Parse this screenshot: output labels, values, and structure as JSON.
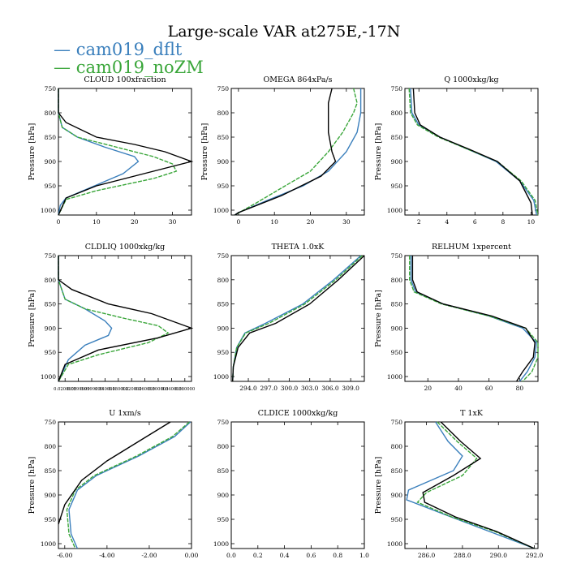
{
  "title": "Large-scale VAR at275E,-17N",
  "legend": [
    {
      "label": "cam019_dflt",
      "color": "#3a7fbc"
    },
    {
      "label": "cam019_noZM",
      "color": "#3aa63a"
    }
  ],
  "colors": {
    "dflt": "#3a7fbc",
    "noZM": "#3aa63a",
    "obs": "#000000"
  },
  "chart_data": [
    {
      "type": "line",
      "title": "CLOUD  100xfraction",
      "ylabel": "Pressure [hPa]",
      "ylim": [
        1010,
        750
      ],
      "xlim": [
        0,
        35
      ],
      "xticks": [
        0,
        10,
        20,
        30
      ],
      "xticklabels": [
        "0",
        "10",
        "20",
        "30"
      ],
      "yticks": [
        750,
        800,
        850,
        900,
        950,
        1000
      ],
      "yticklabels": [
        "750",
        "800",
        "850",
        "900",
        "950",
        "1000"
      ],
      "series": [
        {
          "name": "cam019_dflt",
          "style": "dflt",
          "x": [
            0,
            0,
            1,
            5,
            12,
            20,
            21,
            17,
            8,
            2,
            0.5,
            0
          ],
          "y": [
            750,
            800,
            830,
            850,
            870,
            890,
            900,
            925,
            955,
            975,
            990,
            1010
          ]
        },
        {
          "name": "cam019_noZM",
          "style": "noZM",
          "x": [
            0,
            0,
            1,
            5,
            15,
            25,
            30,
            31,
            25,
            10,
            2,
            0
          ],
          "y": [
            750,
            800,
            830,
            850,
            870,
            890,
            905,
            920,
            935,
            960,
            978,
            1010
          ]
        },
        {
          "name": "",
          "style": "obs",
          "x": [
            0,
            0,
            2,
            10,
            20,
            28,
            35,
            25,
            10,
            2,
            0
          ],
          "y": [
            750,
            800,
            820,
            850,
            865,
            880,
            900,
            920,
            950,
            975,
            1010
          ]
        }
      ]
    },
    {
      "type": "line",
      "title": "OMEGA  864xPa/s",
      "ylabel": "Pressure [hPa]",
      "ylim": [
        1010,
        750
      ],
      "xlim": [
        -2,
        35
      ],
      "xticks": [
        0,
        10,
        20,
        30
      ],
      "xticklabels": [
        "0",
        "10",
        "20",
        "30"
      ],
      "yticks": [
        750,
        800,
        850,
        900,
        950,
        1000
      ],
      "yticklabels": [
        "750",
        "800",
        "850",
        "900",
        "950",
        "1000"
      ],
      "series": [
        {
          "name": "cam019_dflt",
          "style": "dflt",
          "x": [
            34,
            34,
            34,
            33,
            30,
            25,
            18,
            8,
            0,
            -1
          ],
          "y": [
            750,
            780,
            800,
            840,
            880,
            920,
            950,
            980,
            1005,
            1010
          ]
        },
        {
          "name": "cam019_noZM",
          "style": "noZM",
          "x": [
            32,
            33,
            32,
            29,
            25,
            20,
            13,
            5,
            -1
          ],
          "y": [
            750,
            780,
            800,
            840,
            880,
            920,
            950,
            985,
            1010
          ]
        },
        {
          "name": "",
          "style": "obs",
          "x": [
            26,
            25,
            25,
            25,
            26,
            27,
            23,
            12,
            0,
            -1
          ],
          "y": [
            750,
            780,
            800,
            840,
            880,
            900,
            930,
            970,
            1005,
            1010
          ]
        }
      ]
    },
    {
      "type": "line",
      "title": "Q  1000xkg/kg",
      "ylabel": "Pressure [hPa]",
      "ylim": [
        1010,
        750
      ],
      "xlim": [
        1,
        10.5
      ],
      "xticks": [
        2,
        4,
        6,
        8,
        10
      ],
      "xticklabels": [
        "2",
        "4",
        "6",
        "8",
        "10"
      ],
      "yticks": [
        750,
        800,
        850,
        900,
        950,
        1000
      ],
      "yticklabels": [
        "750",
        "800",
        "850",
        "900",
        "950",
        "1000"
      ],
      "series": [
        {
          "name": "cam019_dflt",
          "style": "dflt",
          "x": [
            1.4,
            1.5,
            2.0,
            3.5,
            5.5,
            7.5,
            9.2,
            10.2,
            10.4
          ],
          "y": [
            750,
            800,
            825,
            850,
            875,
            900,
            940,
            980,
            1010
          ]
        },
        {
          "name": "cam019_noZM",
          "style": "noZM",
          "x": [
            1.3,
            1.4,
            1.9,
            3.4,
            5.5,
            7.6,
            9.3,
            10.3,
            10.5
          ],
          "y": [
            750,
            800,
            825,
            850,
            875,
            900,
            940,
            980,
            1010
          ]
        },
        {
          "name": "",
          "style": "obs",
          "x": [
            1.6,
            1.7,
            2.1,
            3.5,
            5.6,
            7.6,
            9.2,
            10.0,
            10.1
          ],
          "y": [
            750,
            800,
            825,
            850,
            875,
            900,
            940,
            985,
            1010
          ]
        }
      ]
    },
    {
      "type": "line",
      "title": "CLDLIQ  1000xkg/kg",
      "ylabel": "Pressure [hPa]",
      "ylim": [
        1010,
        750
      ],
      "xlim": [
        0,
        0.4
      ],
      "xticks": [
        0.02,
        0.06,
        0.1,
        0.14,
        0.18,
        0.22,
        0.26,
        0.3,
        0.34,
        0.38
      ],
      "xticklabels": [
        "0.0200000",
        "0.0599999",
        "0.0999999",
        "0.140000",
        "0.180000",
        "0.220000",
        "0.260000",
        "0.300000",
        "0.340000",
        "0.380000"
      ],
      "yticks": [
        750,
        800,
        850,
        900,
        950,
        1000
      ],
      "yticklabels": [
        "750",
        "800",
        "850",
        "900",
        "950",
        "1000"
      ],
      "series": [
        {
          "name": "cam019_dflt",
          "style": "dflt",
          "x": [
            0,
            0,
            0.02,
            0.08,
            0.14,
            0.16,
            0.15,
            0.08,
            0.03,
            0
          ],
          "y": [
            750,
            800,
            840,
            860,
            885,
            900,
            915,
            935,
            965,
            1010
          ]
        },
        {
          "name": "cam019_noZM",
          "style": "noZM",
          "x": [
            0,
            0,
            0.02,
            0.08,
            0.2,
            0.3,
            0.33,
            0.27,
            0.12,
            0.03,
            0
          ],
          "y": [
            750,
            800,
            840,
            860,
            880,
            895,
            910,
            930,
            955,
            975,
            1010
          ]
        },
        {
          "name": "",
          "style": "obs",
          "x": [
            0,
            0,
            0.04,
            0.15,
            0.28,
            0.4,
            0.3,
            0.12,
            0.02,
            0
          ],
          "y": [
            750,
            800,
            820,
            850,
            870,
            900,
            920,
            945,
            975,
            1010
          ]
        }
      ]
    },
    {
      "type": "line",
      "title": "THETA  1.0xK",
      "ylabel": "",
      "ylim": [
        1010,
        750
      ],
      "xlim": [
        291.5,
        311
      ],
      "xticks": [
        294,
        297,
        300,
        303,
        306,
        309
      ],
      "xticklabels": [
        "294.0",
        "297.0",
        "300.0",
        "303.0",
        "306.0",
        "309.0"
      ],
      "yticks": [
        750,
        800,
        850,
        900,
        950,
        1000
      ],
      "yticklabels": [
        "750",
        "800",
        "850",
        "900",
        "950",
        "1000"
      ],
      "series": [
        {
          "name": "cam019_dflt",
          "style": "dflt",
          "x": [
            310.5,
            306.5,
            302.0,
            296.5,
            293.5,
            292.3,
            291.8,
            291.7
          ],
          "y": [
            750,
            800,
            850,
            890,
            910,
            940,
            980,
            1010
          ]
        },
        {
          "name": "cam019_noZM",
          "style": "noZM",
          "x": [
            310.7,
            306.8,
            302.3,
            297.0,
            293.6,
            292.3,
            291.8,
            291.7
          ],
          "y": [
            750,
            800,
            850,
            890,
            910,
            940,
            980,
            1010
          ]
        },
        {
          "name": "",
          "style": "obs",
          "x": [
            311.0,
            307.2,
            303.0,
            298.0,
            294.2,
            292.5,
            291.8,
            291.7
          ],
          "y": [
            750,
            800,
            850,
            890,
            910,
            940,
            980,
            1010
          ]
        }
      ]
    },
    {
      "type": "line",
      "title": "RELHUM  1xpercent",
      "ylabel": "Pressure [hPa]",
      "ylim": [
        1010,
        750
      ],
      "xlim": [
        5,
        92
      ],
      "xticks": [
        20,
        40,
        60,
        80
      ],
      "xticklabels": [
        "20",
        "40",
        "60",
        "80"
      ],
      "yticks": [
        750,
        800,
        850,
        900,
        950,
        1000
      ],
      "yticklabels": [
        "750",
        "800",
        "850",
        "900",
        "950",
        "1000"
      ],
      "series": [
        {
          "name": "cam019_dflt",
          "style": "dflt",
          "x": [
            9,
            9,
            12,
            30,
            60,
            82,
            91,
            90,
            85,
            80
          ],
          "y": [
            750,
            800,
            825,
            850,
            875,
            900,
            930,
            960,
            990,
            1010
          ]
        },
        {
          "name": "cam019_noZM",
          "style": "noZM",
          "x": [
            8,
            8,
            11,
            29,
            60,
            84,
            92,
            92,
            88,
            82
          ],
          "y": [
            750,
            800,
            825,
            850,
            875,
            900,
            930,
            960,
            990,
            1010
          ]
        },
        {
          "name": "",
          "style": "obs",
          "x": [
            10,
            10,
            13,
            30,
            62,
            84,
            90,
            89,
            82,
            78
          ],
          "y": [
            750,
            800,
            825,
            850,
            875,
            900,
            930,
            960,
            990,
            1010
          ]
        }
      ]
    },
    {
      "type": "line",
      "title": "U  1xm/s",
      "ylabel": "Pressure [hPa]",
      "ylim": [
        1010,
        750
      ],
      "xlim": [
        -6.3,
        0
      ],
      "xticks": [
        -6,
        -4,
        -2,
        0
      ],
      "xticklabels": [
        "-6.00",
        "-4.00",
        "-2.00",
        "0.00"
      ],
      "yticks": [
        750,
        800,
        850,
        900,
        950,
        1000
      ],
      "yticklabels": [
        "750",
        "800",
        "850",
        "900",
        "950",
        "1000"
      ],
      "series": [
        {
          "name": "cam019_dflt",
          "style": "dflt",
          "x": [
            -0.05,
            -0.8,
            -2.5,
            -4.5,
            -5.4,
            -5.8,
            -5.7,
            -5.4
          ],
          "y": [
            750,
            780,
            820,
            860,
            890,
            930,
            980,
            1010
          ]
        },
        {
          "name": "cam019_noZM",
          "style": "noZM",
          "x": [
            -0.1,
            -0.9,
            -2.6,
            -4.6,
            -5.5,
            -5.9,
            -5.8,
            -5.5
          ],
          "y": [
            750,
            780,
            820,
            860,
            890,
            930,
            980,
            1010
          ]
        },
        {
          "name": "",
          "style": "obs",
          "x": [
            -1.0,
            -2.5,
            -4.0,
            -5.2,
            -6.0,
            -6.3
          ],
          "y": [
            750,
            790,
            830,
            870,
            920,
            960
          ]
        }
      ]
    },
    {
      "type": "line",
      "title": "CLDICE  1000xkg/kg",
      "ylabel": "",
      "ylim": [
        1010,
        750
      ],
      "xlim": [
        0,
        1
      ],
      "xticks": [
        0,
        0.2,
        0.4,
        0.6,
        0.8,
        1.0
      ],
      "xticklabels": [
        "0.0",
        "0.2",
        "0.4",
        "0.6",
        "0.8",
        "1.0"
      ],
      "yticks": [
        750,
        800,
        850,
        900,
        950,
        1000
      ],
      "yticklabels": [
        "750",
        "800",
        "850",
        "900",
        "950",
        "1000"
      ],
      "series": []
    },
    {
      "type": "line",
      "title": "T  1xK",
      "ylabel": "Pressure [hPa]",
      "ylim": [
        1010,
        750
      ],
      "xlim": [
        284.8,
        292.2
      ],
      "xticks": [
        286,
        288,
        290,
        292
      ],
      "xticklabels": [
        "286.0",
        "288.0",
        "290.0",
        "292.0"
      ],
      "yticks": [
        750,
        800,
        850,
        900,
        950,
        1000
      ],
      "yticklabels": [
        "750",
        "800",
        "850",
        "900",
        "950",
        "1000"
      ],
      "series": [
        {
          "name": "cam019_dflt",
          "style": "dflt",
          "x": [
            286.5,
            287.2,
            288.0,
            287.5,
            285.0,
            284.9,
            287.0,
            289.5,
            292.0
          ],
          "y": [
            750,
            790,
            820,
            850,
            890,
            910,
            940,
            975,
            1010
          ]
        },
        {
          "name": "cam019_noZM",
          "style": "noZM",
          "x": [
            286.6,
            287.7,
            288.8,
            288.0,
            286.0,
            285.5,
            287.4,
            289.8,
            292.0
          ],
          "y": [
            750,
            790,
            825,
            860,
            895,
            915,
            945,
            975,
            1010
          ]
        },
        {
          "name": "",
          "style": "obs",
          "x": [
            286.8,
            287.9,
            289.0,
            287.5,
            285.8,
            285.9,
            287.6,
            289.9,
            292.0
          ],
          "y": [
            750,
            790,
            825,
            860,
            895,
            915,
            945,
            975,
            1010
          ]
        }
      ]
    }
  ]
}
